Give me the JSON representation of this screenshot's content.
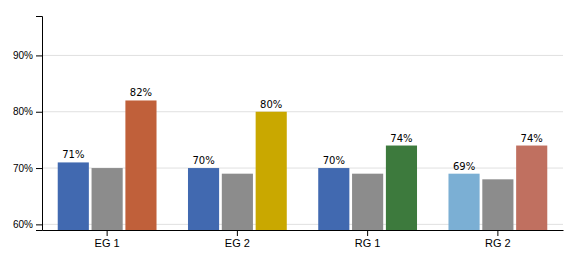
{
  "chart_data": {
    "type": "bar",
    "categories": [
      "EG 1",
      "EG 2",
      "RG 1",
      "RG 2"
    ],
    "series": [
      {
        "colors": [
          "#4169B0",
          "#4169B0",
          "#4169B0",
          "#7BAFD4"
        ],
        "values": [
          71,
          70,
          70,
          69
        ],
        "value_labels": [
          "71%",
          "70%",
          "70%",
          "69%"
        ],
        "data_labels": true
      },
      {
        "color": "#8C8C8C",
        "values": [
          70,
          69,
          69,
          68
        ],
        "data_labels": false
      },
      {
        "colors": [
          "#C0603A",
          "#C9A800",
          "#3D7A3D",
          "#C07060"
        ],
        "values": [
          82,
          80,
          74,
          74
        ],
        "value_labels": [
          "82%",
          "80%",
          "74%",
          "74%"
        ],
        "data_labels": true
      }
    ],
    "ylim": [
      59,
      97
    ],
    "yticks": [
      {
        "value": 60,
        "label": "60%"
      },
      {
        "value": 70,
        "label": "70%"
      },
      {
        "value": 80,
        "label": "80%"
      },
      {
        "value": 90,
        "label": "90%"
      }
    ],
    "grid": true
  }
}
